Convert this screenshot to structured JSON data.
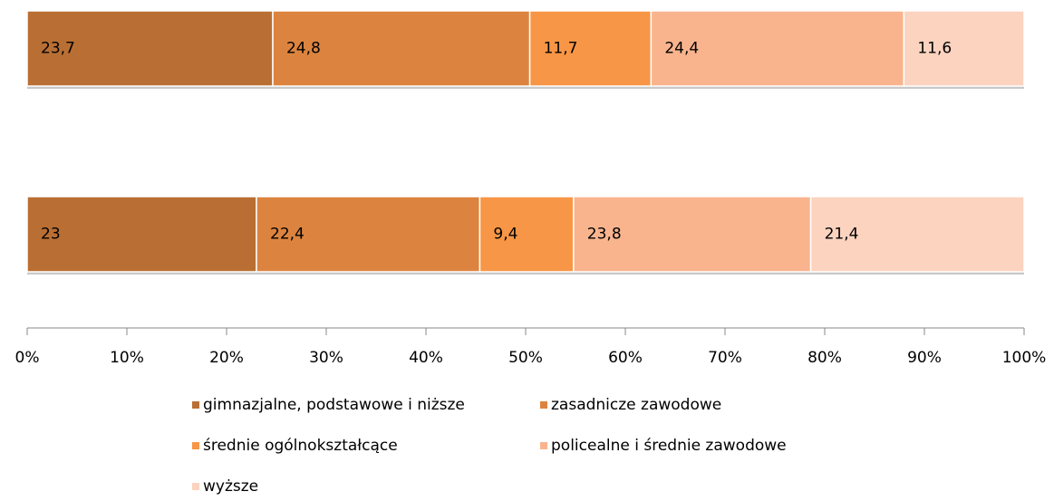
{
  "chart_data": {
    "type": "bar",
    "orientation": "horizontal",
    "stacking": "percent",
    "categories": [
      null,
      null
    ],
    "series": [
      {
        "name": "gimnazjalne, podstawowe i niższe",
        "color": "#b96f33",
        "values": [
          23.7,
          23
        ],
        "value_labels": [
          "23,7",
          "23"
        ]
      },
      {
        "name": "zasadnicze zawodowe",
        "color": "#dc843f",
        "values": [
          24.8,
          22.4
        ],
        "value_labels": [
          "24,8",
          "22,4"
        ]
      },
      {
        "name": "średnie ogólnokształcące",
        "color": "#f79646",
        "values": [
          11.7,
          9.4
        ],
        "value_labels": [
          "11,7",
          "9,4"
        ]
      },
      {
        "name": "policealne i średnie zawodowe",
        "color": "#f9b48e",
        "values": [
          24.4,
          23.8
        ],
        "value_labels": [
          "24,4",
          "23,8"
        ]
      },
      {
        "name": "wyższe",
        "color": "#fbd3bf",
        "values": [
          11.6,
          21.4
        ],
        "value_labels": [
          "11,6",
          "21,4"
        ]
      }
    ],
    "xlim": [
      0,
      100
    ],
    "xticks": [
      {
        "value": 0,
        "label": "0%"
      },
      {
        "value": 10,
        "label": "10%"
      },
      {
        "value": 20,
        "label": "20%"
      },
      {
        "value": 30,
        "label": "30%"
      },
      {
        "value": 40,
        "label": "40%"
      },
      {
        "value": 50,
        "label": "50%"
      },
      {
        "value": 60,
        "label": "60%"
      },
      {
        "value": 70,
        "label": "70%"
      },
      {
        "value": 80,
        "label": "80%"
      },
      {
        "value": 90,
        "label": "90%"
      },
      {
        "value": 100,
        "label": "100%"
      }
    ],
    "legend": "bottom"
  }
}
